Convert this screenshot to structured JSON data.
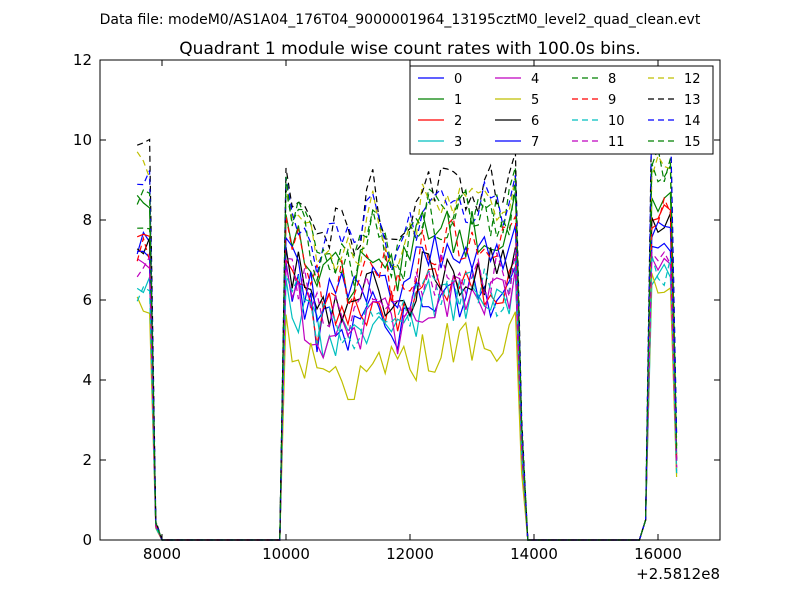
{
  "chart_data": {
    "type": "line",
    "suptitle": "Data file: modeM0/AS1A04_176T04_9000001964_13195cztM0_level2_quad_clean.evt",
    "title": "Quadrant 1 module wise count rates with 100.0s bins.",
    "xlabel": "",
    "ylabel": "",
    "x_offset_label": "+2.5812e8",
    "xlim": [
      7000,
      17000
    ],
    "ylim": [
      0,
      12
    ],
    "x_ticks": [
      8000,
      10000,
      12000,
      14000,
      16000
    ],
    "y_ticks": [
      0,
      2,
      4,
      6,
      8,
      10,
      12
    ],
    "grid": false,
    "legend": {
      "location": "top-right",
      "columns": 4
    },
    "x": [
      7600,
      7700,
      7800,
      7900,
      8000,
      8100,
      8200,
      8300,
      8400,
      8500,
      8600,
      8700,
      8800,
      8900,
      9000,
      9100,
      9200,
      9300,
      9400,
      9500,
      9600,
      9700,
      9800,
      9900,
      10000,
      10100,
      10200,
      10300,
      10400,
      10500,
      10600,
      10700,
      10800,
      10900,
      11000,
      11100,
      11200,
      11300,
      11400,
      11500,
      11600,
      11700,
      11800,
      11900,
      12000,
      12100,
      12200,
      12300,
      12400,
      12500,
      12600,
      12700,
      12800,
      12900,
      13000,
      13100,
      13200,
      13300,
      13400,
      13500,
      13600,
      13700,
      13800,
      13900,
      14000,
      14100,
      14200,
      14300,
      14400,
      14500,
      14600,
      14700,
      14800,
      14900,
      15000,
      15100,
      15200,
      15300,
      15400,
      15500,
      15600,
      15700,
      15800,
      15900,
      16000,
      16100,
      16200,
      16300
    ],
    "series": [
      {
        "name": "0",
        "color": "#0000ff",
        "dash": "solid",
        "base": 6.2,
        "peak_first": 7.5,
        "peak_last": 7.2
      },
      {
        "name": "1",
        "color": "#008000",
        "dash": "solid",
        "base": 7.7,
        "peak_first": 8.3,
        "peak_last": 8.6
      },
      {
        "name": "2",
        "color": "#ff0000",
        "dash": "solid",
        "base": 6.4,
        "peak_first": 7.5,
        "peak_last": 8.1
      },
      {
        "name": "3",
        "color": "#00bfbf",
        "dash": "solid",
        "base": 5.9,
        "peak_first": 6.3,
        "peak_last": 6.6
      },
      {
        "name": "4",
        "color": "#bf00bf",
        "dash": "solid",
        "base": 6.0,
        "peak_first": 6.7,
        "peak_last": 6.9
      },
      {
        "name": "5",
        "color": "#bfbf00",
        "dash": "solid",
        "base": 4.8,
        "peak_first": 5.8,
        "peak_last": 6.3
      },
      {
        "name": "6",
        "color": "#000000",
        "dash": "solid",
        "base": 6.7,
        "peak_first": 7.3,
        "peak_last": 7.9
      },
      {
        "name": "7",
        "color": "#0000ff",
        "dash": "solid",
        "base": 7.0,
        "peak_first": 7.2,
        "peak_last": 8.0
      },
      {
        "name": "8",
        "color": "#008000",
        "dash": "dashed",
        "base": 8.2,
        "peak_first": 8.0,
        "peak_last": 9.4
      },
      {
        "name": "9",
        "color": "#ff0000",
        "dash": "dashed",
        "base": 7.4,
        "peak_first": 7.3,
        "peak_last": 8.1
      },
      {
        "name": "10",
        "color": "#00bfbf",
        "dash": "dashed",
        "base": 6.2,
        "peak_first": 6.2,
        "peak_last": 6.7
      },
      {
        "name": "11",
        "color": "#bf00bf",
        "dash": "dashed",
        "base": 6.6,
        "peak_first": 6.8,
        "peak_last": 7.3
      },
      {
        "name": "12",
        "color": "#bfbf00",
        "dash": "dashed",
        "base": 8.3,
        "peak_first": 9.4,
        "peak_last": 9.5
      },
      {
        "name": "13",
        "color": "#000000",
        "dash": "dashed",
        "base": 8.8,
        "peak_first": 9.7,
        "peak_last": 10.5
      },
      {
        "name": "14",
        "color": "#0000ff",
        "dash": "dashed",
        "base": 8.4,
        "peak_first": 9.0,
        "peak_last": 10.3
      },
      {
        "name": "15",
        "color": "#008000",
        "dash": "dashed",
        "base": 8.1,
        "peak_first": 8.5,
        "peak_last": 9.0
      }
    ]
  }
}
